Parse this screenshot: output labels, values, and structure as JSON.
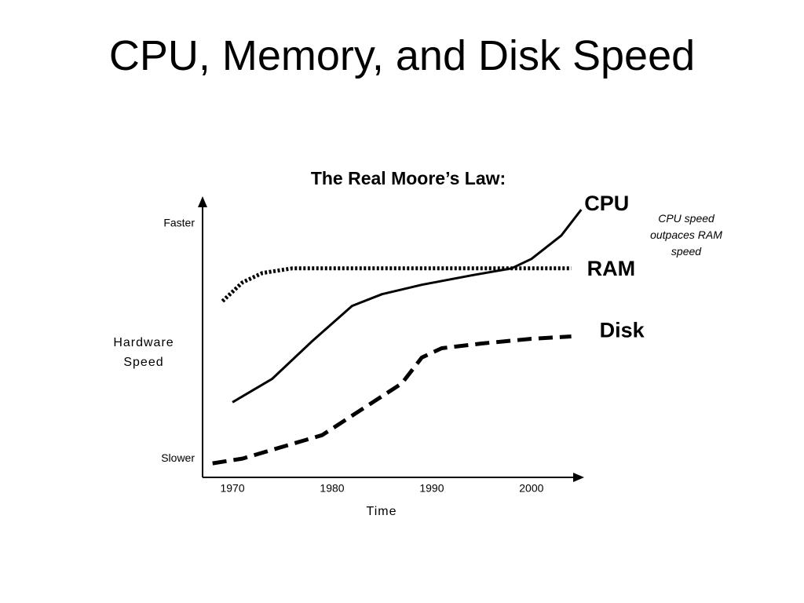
{
  "slide_title": "CPU, Memory, and Disk Speed",
  "chart_data": {
    "type": "line",
    "title": "The Real Moore’s Law:",
    "x_label": "Time",
    "y_label": "Hardware Speed",
    "annotation": "CPU speed outpaces RAM speed",
    "xlim": [
      1967,
      2006
    ],
    "xticks": [
      1970,
      1980,
      1990,
      2000
    ],
    "ylim": [
      -8,
      110
    ],
    "yticks": [
      {
        "value": 0,
        "label": "Slower"
      },
      {
        "value": 100,
        "label": "Faster"
      }
    ],
    "grid": false,
    "series": [
      {
        "name": "CPU",
        "color": "#000000",
        "style": "solid",
        "x": [
          1970,
          1974,
          1978,
          1982,
          1985,
          1989,
          1994,
          1998,
          2000,
          2003,
          2005
        ],
        "values": [
          24,
          34,
          50,
          65,
          70,
          74,
          78,
          81,
          85,
          95,
          106
        ]
      },
      {
        "name": "RAM",
        "color": "#000000",
        "style": "dotted",
        "x": [
          1969,
          1971,
          1973,
          1976,
          2004
        ],
        "values": [
          67,
          75,
          79,
          81,
          81
        ]
      },
      {
        "name": "Disk",
        "color": "#000000",
        "style": "dashed",
        "x": [
          1968,
          1971,
          1975,
          1979,
          1983,
          1987,
          1989,
          1991,
          1995,
          2000,
          2004
        ],
        "values": [
          -2,
          0,
          5,
          10,
          21,
          32,
          43,
          47,
          49,
          51,
          52
        ]
      }
    ]
  }
}
